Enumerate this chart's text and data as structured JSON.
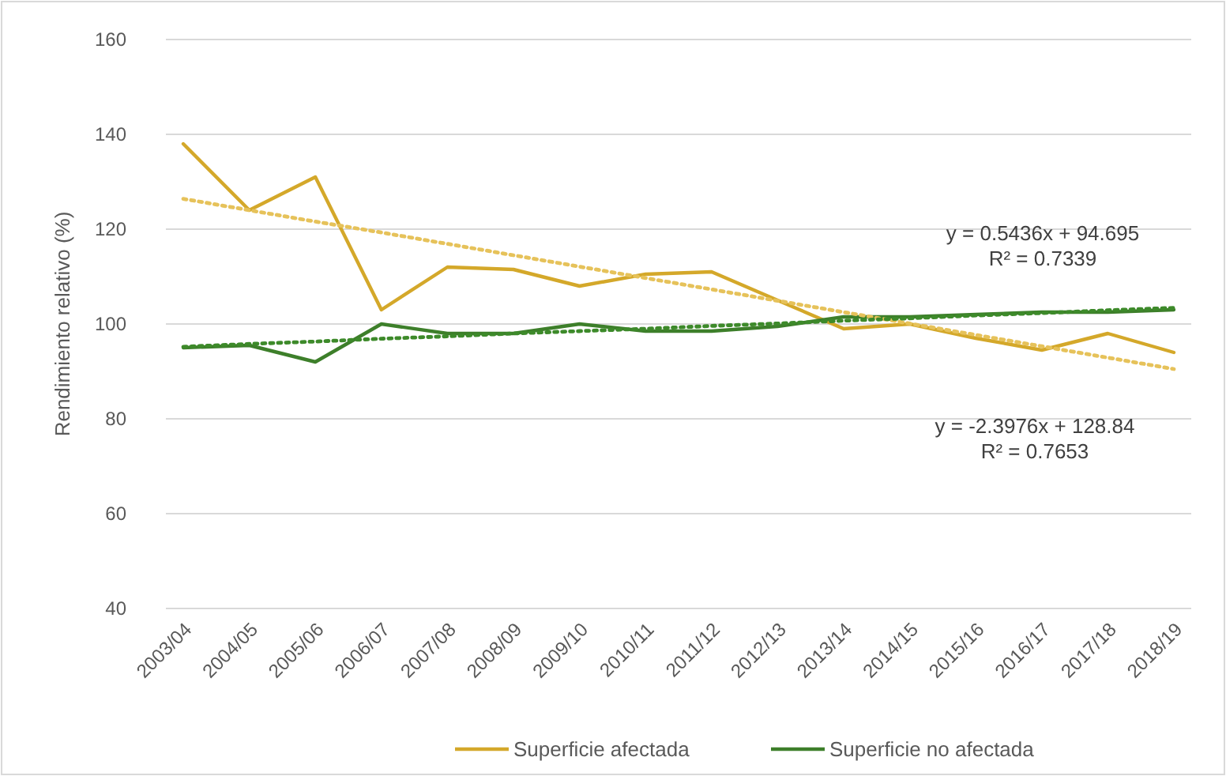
{
  "chart_data": {
    "type": "line",
    "ylabel": "Rendimiento relativo (%)",
    "categories": [
      "2003/04",
      "2004/05",
      "2005/06",
      "2006/07",
      "2007/08",
      "2008/09",
      "2009/10",
      "2010/11",
      "2011/12",
      "2012/13",
      "2013/14",
      "2014/15",
      "2015/16",
      "2016/17",
      "2017/18",
      "2018/19"
    ],
    "series": [
      {
        "name": "Superficie afectada",
        "color": "#d4a82a",
        "values": [
          138,
          124,
          131,
          103,
          112,
          111.5,
          108,
          110.5,
          111,
          105,
          99,
          100,
          97,
          94.5,
          98,
          94
        ]
      },
      {
        "name": "Superficie no afectada",
        "color": "#3d7f2a",
        "values": [
          95,
          95.5,
          92,
          100,
          98,
          98,
          100,
          98.5,
          98.5,
          99.5,
          101.5,
          101.5,
          102,
          102.5,
          102.5,
          103
        ]
      },
      {
        "type": "line",
        "color": "#e6c25a",
        "line_style": "dotted",
        "values": [
          126.4,
          124.0,
          121.6,
          119.3,
          116.9,
          114.5,
          112.1,
          109.7,
          107.3,
          104.9,
          102.5,
          100.1,
          97.7,
          95.3,
          92.9,
          90.5
        ]
      },
      {
        "type": "line",
        "color": "#3d8a2a",
        "line_style": "dotted",
        "values": [
          95.2,
          95.8,
          96.3,
          96.9,
          97.4,
          98.0,
          98.5,
          99.0,
          99.6,
          100.1,
          100.7,
          101.2,
          101.8,
          102.3,
          102.9,
          103.4
        ]
      }
    ],
    "ylim": [
      40,
      160
    ],
    "yticks": [
      40,
      60,
      80,
      100,
      120,
      140,
      160
    ],
    "grid": "y",
    "legend": "bottom",
    "line_style": "solid",
    "annotations": [
      "y = 0.5436x + 94.695",
      "R² = 0.7339",
      "y = -2.3976x + 128.84",
      "R² = 0.7653"
    ]
  }
}
